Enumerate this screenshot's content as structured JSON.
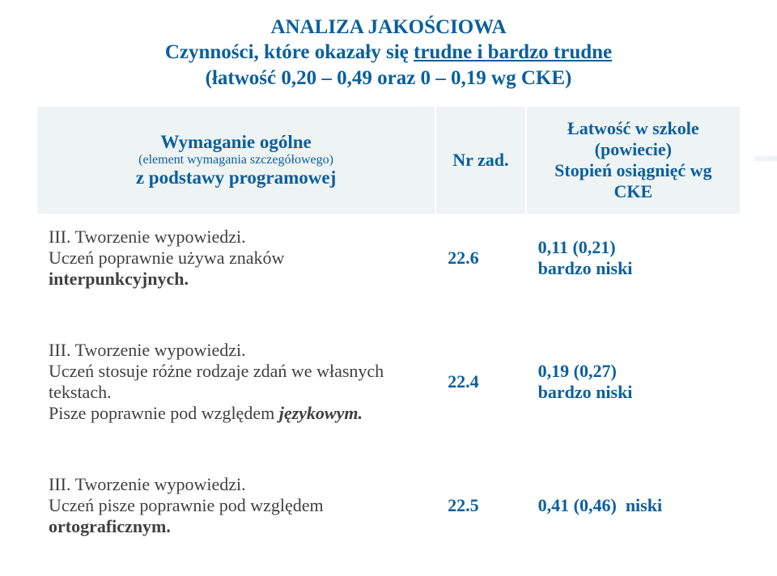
{
  "title": {
    "line1": "ANALIZA JAKOŚCIOWA",
    "line2_pre": "Czynności, które okazały się ",
    "line2_u": "trudne i bardzo trudne",
    "line3": "(łatwość 0,20 – 0,49 oraz 0 – 0,19 wg CKE)"
  },
  "header": {
    "req_main": "Wymaganie ogólne",
    "req_sub": "(element wymagania szczegółowego)",
    "req_main2": "z podstawy programowej",
    "nr": "Nr zad.",
    "lat": "Łatwość w szkole (powiecie)",
    "lat2": "Stopień osiągnięć wg CKE"
  },
  "rows": [
    {
      "req_title": "III. Tworzenie  wypowiedzi.",
      "req_body_pre": "Uczeń  poprawnie używa  znaków ",
      "req_body_em": "interpunkcyjnych.",
      "nr": "22.6",
      "lat_num": "0,11 (0,21)",
      "lat_label": "bardzo niski"
    },
    {
      "req_title": "III. Tworzenie  wypowiedzi.",
      "req_body_pre": "Uczeń stosuje różne rodzaje zdań we własnych tekstach. ",
      "req_body_em": "",
      "req_body_line2_pre": "Pisze poprawnie pod względem ",
      "req_body_line2_em": "językowym.",
      "nr": "22.4",
      "lat_num": "0,19 (0,27)",
      "lat_label": "bardzo niski"
    },
    {
      "req_title": "III. Tworzenie  wypowiedzi.",
      "req_body_pre": "Uczeń pisze poprawnie pod względem ",
      "req_body_em": "ortograficznym.",
      "nr": "22.5",
      "lat_num": "0,41 (0,46)",
      "lat_label": "niski"
    }
  ],
  "colors": {
    "accent": "#0a5f9e",
    "header_bg": "#eef3f3",
    "text_body": "#404040",
    "border": "#ffffff"
  }
}
